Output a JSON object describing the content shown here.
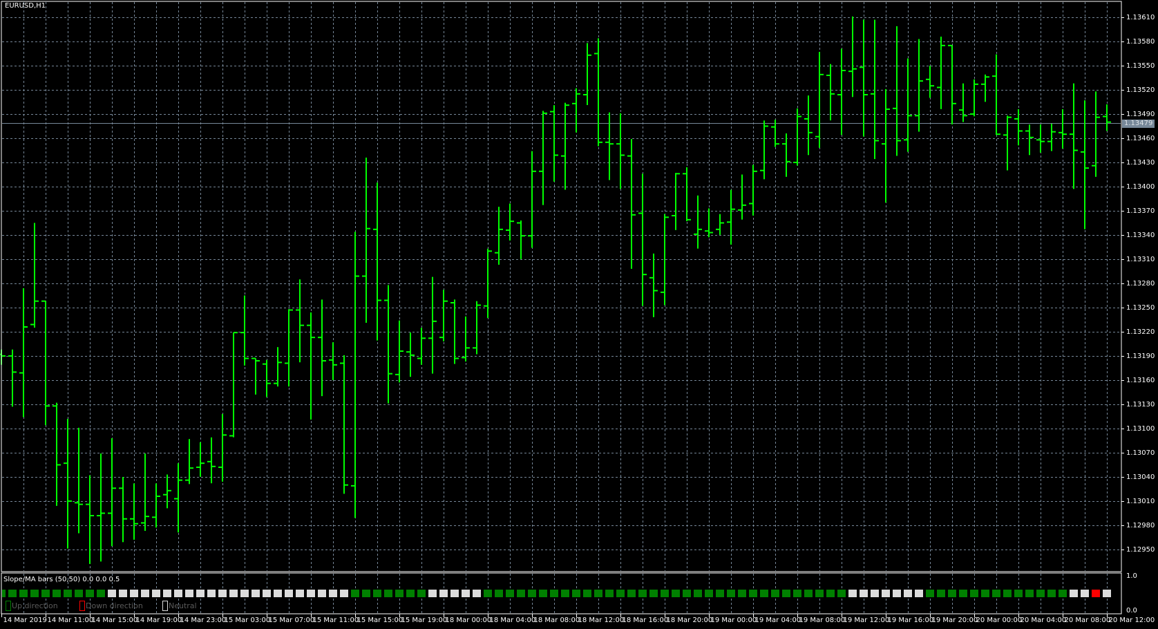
{
  "window": {
    "title": "EURUSD,H1"
  },
  "indicator": {
    "label": "Slope/MA bars (50,50) 0.0 0.0 0.5",
    "axis_top": "1.0",
    "axis_bottom": "0.0"
  },
  "legend": [
    {
      "label": "Up direction",
      "color": "#008000"
    },
    {
      "label": "Down direction",
      "color": "#ff0000"
    },
    {
      "label": "Neutral",
      "color": "#dcdcdc"
    }
  ],
  "colors": {
    "background": "#000000",
    "bars": "#00ff00",
    "grid": "#778899",
    "up": "#008000",
    "down": "#ff0000",
    "neutral": "#dcdcdc",
    "bid_line": "#778899"
  },
  "chart_data": {
    "type": "ohlc",
    "symbol": "EURUSD",
    "timeframe": "H1",
    "grid": true,
    "ylim": [
      1.12923,
      1.1363
    ],
    "y_ticks": [
      "1.13610",
      "1.13580",
      "1.13550",
      "1.13520",
      "1.13490",
      "1.13460",
      "1.13430",
      "1.13400",
      "1.13370",
      "1.13340",
      "1.13310",
      "1.13280",
      "1.13250",
      "1.13220",
      "1.13190",
      "1.13160",
      "1.13130",
      "1.13100",
      "1.13070",
      "1.13040",
      "1.13010",
      "1.12980",
      "1.12950"
    ],
    "current_price": "1.13479",
    "x_tick_labels": [
      "14 Mar 2019",
      "14 Mar 11:00",
      "14 Mar 15:00",
      "14 Mar 19:00",
      "14 Mar 23:00",
      "15 Mar 03:00",
      "15 Mar 07:00",
      "15 Mar 11:00",
      "15 Mar 15:00",
      "15 Mar 19:00",
      "18 Mar 00:00",
      "18 Mar 04:00",
      "18 Mar 08:00",
      "18 Mar 12:00",
      "18 Mar 16:00",
      "18 Mar 20:00",
      "19 Mar 00:00",
      "19 Mar 04:00",
      "19 Mar 08:00",
      "19 Mar 12:00",
      "19 Mar 16:00",
      "19 Mar 20:00",
      "20 Mar 00:00",
      "20 Mar 04:00",
      "20 Mar 08:00",
      "20 Mar 12:00"
    ],
    "x_tick_every_bars": 4,
    "ohlc_fields": [
      "open",
      "high",
      "low",
      "close"
    ],
    "bars": [
      [
        1.13192,
        1.13198,
        1.1318,
        1.1319
      ],
      [
        1.1319,
        1.13198,
        1.13128,
        1.1317
      ],
      [
        1.13169,
        1.13274,
        1.13115,
        1.13226
      ],
      [
        1.13229,
        1.13355,
        1.13226,
        1.13258
      ],
      [
        1.13258,
        1.13258,
        1.13105,
        1.13128
      ],
      [
        1.13128,
        1.13132,
        1.13005,
        1.13055
      ],
      [
        1.13057,
        1.13112,
        1.12952,
        1.1301
      ],
      [
        1.13008,
        1.13101,
        1.12971,
        1.13006
      ],
      [
        1.13006,
        1.13042,
        1.12933,
        1.12992
      ],
      [
        1.12992,
        1.13069,
        1.12936,
        1.12995
      ],
      [
        1.12995,
        1.13088,
        1.12955,
        1.13026
      ],
      [
        1.13026,
        1.1304,
        1.1296,
        1.12988
      ],
      [
        1.12988,
        1.13032,
        1.12963,
        1.12982
      ],
      [
        1.12983,
        1.13069,
        1.12974,
        1.12991
      ],
      [
        1.1299,
        1.13032,
        1.12978,
        1.13016
      ],
      [
        1.13018,
        1.13043,
        1.13002,
        1.13023
      ],
      [
        1.13013,
        1.13057,
        1.12972,
        1.13036
      ],
      [
        1.13036,
        1.13087,
        1.13032,
        1.13051
      ],
      [
        1.13052,
        1.13083,
        1.13041,
        1.13057
      ],
      [
        1.13059,
        1.13089,
        1.13033,
        1.13053
      ],
      [
        1.13052,
        1.13118,
        1.13035,
        1.13092
      ],
      [
        1.13091,
        1.13219,
        1.1309,
        1.13219
      ],
      [
        1.13219,
        1.13265,
        1.13179,
        1.13187
      ],
      [
        1.13187,
        1.13187,
        1.13143,
        1.13184
      ],
      [
        1.1318,
        1.13185,
        1.1314,
        1.13156
      ],
      [
        1.13156,
        1.13201,
        1.13153,
        1.13182
      ],
      [
        1.13181,
        1.13248,
        1.13153,
        1.13247
      ],
      [
        1.13247,
        1.13285,
        1.13183,
        1.13228
      ],
      [
        1.13228,
        1.13244,
        1.13112,
        1.13213
      ],
      [
        1.13213,
        1.1326,
        1.13141,
        1.13184
      ],
      [
        1.13185,
        1.13207,
        1.13161,
        1.13179
      ],
      [
        1.13181,
        1.13191,
        1.1302,
        1.1303
      ],
      [
        1.13029,
        1.13344,
        1.1299,
        1.13289
      ],
      [
        1.13289,
        1.13436,
        1.13232,
        1.13348
      ],
      [
        1.13347,
        1.13405,
        1.1321,
        1.13259
      ],
      [
        1.13259,
        1.13278,
        1.13132,
        1.13168
      ],
      [
        1.13167,
        1.13234,
        1.13158,
        1.13196
      ],
      [
        1.13195,
        1.13219,
        1.13165,
        1.13191
      ],
      [
        1.13187,
        1.13225,
        1.1318,
        1.13212
      ],
      [
        1.13212,
        1.13288,
        1.13169,
        1.13233
      ],
      [
        1.13213,
        1.13272,
        1.13209,
        1.13258
      ],
      [
        1.13256,
        1.1326,
        1.13181,
        1.13187
      ],
      [
        1.13188,
        1.13239,
        1.13184,
        1.132
      ],
      [
        1.132,
        1.13258,
        1.13193,
        1.13253
      ],
      [
        1.13252,
        1.13323,
        1.13238,
        1.1332
      ],
      [
        1.13318,
        1.13375,
        1.13304,
        1.13347
      ],
      [
        1.13346,
        1.13379,
        1.13334,
        1.13357
      ],
      [
        1.13355,
        1.13358,
        1.13311,
        1.13339
      ],
      [
        1.13339,
        1.13444,
        1.13325,
        1.13419
      ],
      [
        1.13419,
        1.13494,
        1.13378,
        1.13491
      ],
      [
        1.13493,
        1.13501,
        1.13407,
        1.13439
      ],
      [
        1.13438,
        1.13504,
        1.13397,
        1.13501
      ],
      [
        1.13503,
        1.13522,
        1.13468,
        1.13515
      ],
      [
        1.13514,
        1.13578,
        1.13502,
        1.13563
      ],
      [
        1.13565,
        1.13584,
        1.13451,
        1.13455
      ],
      [
        1.13455,
        1.13492,
        1.13409,
        1.13453
      ],
      [
        1.13453,
        1.13491,
        1.13398,
        1.13439
      ],
      [
        1.13438,
        1.13459,
        1.13299,
        1.13365
      ],
      [
        1.13367,
        1.13416,
        1.13253,
        1.13291
      ],
      [
        1.13287,
        1.13317,
        1.13239,
        1.13271
      ],
      [
        1.13269,
        1.13366,
        1.13254,
        1.13362
      ],
      [
        1.13364,
        1.13417,
        1.13347,
        1.13416
      ],
      [
        1.13416,
        1.13424,
        1.13358,
        1.13359
      ],
      [
        1.13341,
        1.13389,
        1.13324,
        1.13347
      ],
      [
        1.13345,
        1.13373,
        1.13338,
        1.13343
      ],
      [
        1.13347,
        1.13366,
        1.13341,
        1.13355
      ],
      [
        1.13356,
        1.13396,
        1.13329,
        1.13372
      ],
      [
        1.13371,
        1.13415,
        1.1336,
        1.13377
      ],
      [
        1.13379,
        1.13427,
        1.13365,
        1.13419
      ],
      [
        1.1342,
        1.13482,
        1.1341,
        1.13475
      ],
      [
        1.13474,
        1.13483,
        1.1345,
        1.13453
      ],
      [
        1.13453,
        1.13466,
        1.13413,
        1.13431
      ],
      [
        1.1343,
        1.13497,
        1.13427,
        1.13487
      ],
      [
        1.13484,
        1.13513,
        1.1344,
        1.13467
      ],
      [
        1.13462,
        1.13567,
        1.13449,
        1.13539
      ],
      [
        1.13538,
        1.13552,
        1.13483,
        1.13515
      ],
      [
        1.13514,
        1.13571,
        1.13465,
        1.13544
      ],
      [
        1.13543,
        1.13611,
        1.13512,
        1.13546
      ],
      [
        1.13548,
        1.13607,
        1.13463,
        1.13514
      ],
      [
        1.13515,
        1.13607,
        1.13435,
        1.13457
      ],
      [
        1.13453,
        1.13521,
        1.13381,
        1.13496
      ],
      [
        1.13497,
        1.13599,
        1.13439,
        1.13457
      ],
      [
        1.13458,
        1.13559,
        1.13444,
        1.13488
      ],
      [
        1.13488,
        1.13583,
        1.13469,
        1.13531
      ],
      [
        1.13533,
        1.1355,
        1.13511,
        1.13525
      ],
      [
        1.13523,
        1.13586,
        1.13497,
        1.13575
      ],
      [
        1.13575,
        1.13575,
        1.13478,
        1.13503
      ],
      [
        1.13495,
        1.13528,
        1.13481,
        1.13488
      ],
      [
        1.1349,
        1.13533,
        1.13488,
        1.13527
      ],
      [
        1.13527,
        1.13539,
        1.13506,
        1.13536
      ],
      [
        1.13537,
        1.13564,
        1.13465,
        1.13465
      ],
      [
        1.13464,
        1.13488,
        1.13421,
        1.13486
      ],
      [
        1.13484,
        1.13496,
        1.13452,
        1.13469
      ],
      [
        1.13469,
        1.13477,
        1.1344,
        1.13461
      ],
      [
        1.13458,
        1.13477,
        1.13443,
        1.13456
      ],
      [
        1.13456,
        1.13478,
        1.13445,
        1.13468
      ],
      [
        1.13467,
        1.13496,
        1.13448,
        1.13465
      ],
      [
        1.13465,
        1.13528,
        1.13398,
        1.13445
      ],
      [
        1.13443,
        1.13507,
        1.13348,
        1.13423
      ],
      [
        1.13426,
        1.13518,
        1.13413,
        1.13486
      ],
      [
        1.13487,
        1.13502,
        1.1347,
        1.1348
      ]
    ],
    "indicator_states": "UUUUUUUUUUNNNNNNNNNNNNNNNNNNNNNNUUUUUUUNNNNNUUUUUUUUUUUUUUUUUUUUUUUUUUUUUUUUUNNNNNNNUUUUUUUUUUUUUNNDN",
    "indicator_range": [
      0.0,
      1.0
    ]
  }
}
